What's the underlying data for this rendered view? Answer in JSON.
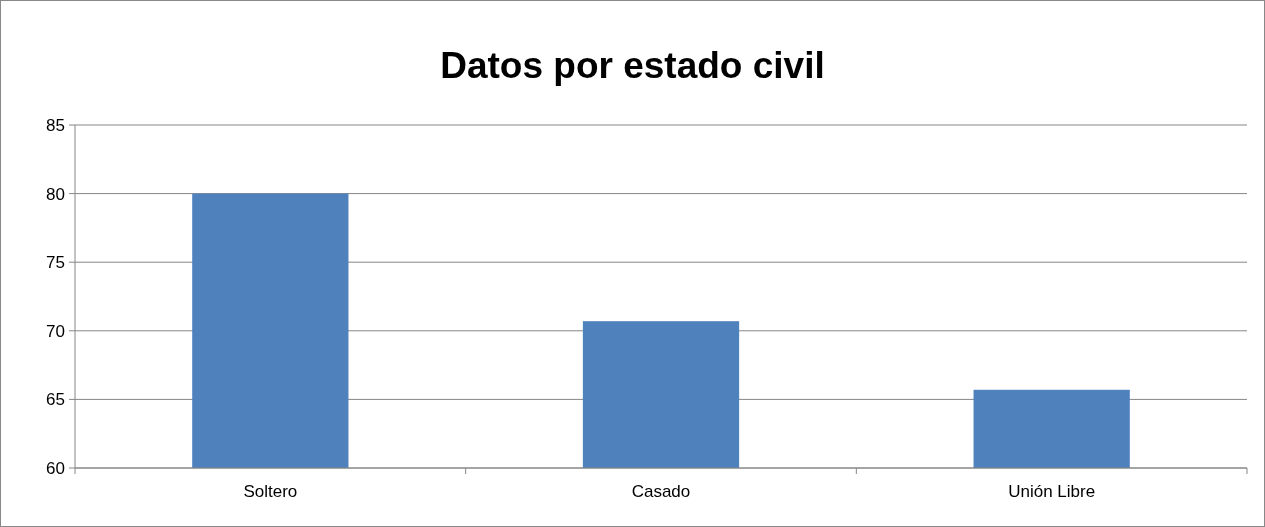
{
  "chart_data": {
    "type": "bar",
    "title": "Datos por estado civil",
    "categories": [
      "Soltero",
      "Casado",
      "Unión Libre"
    ],
    "values": [
      80,
      70.7,
      65.7
    ],
    "color": "#4f81bd",
    "ylim": [
      60,
      85
    ],
    "yticks": [
      60,
      65,
      70,
      75,
      80,
      85
    ],
    "grid": "y"
  }
}
